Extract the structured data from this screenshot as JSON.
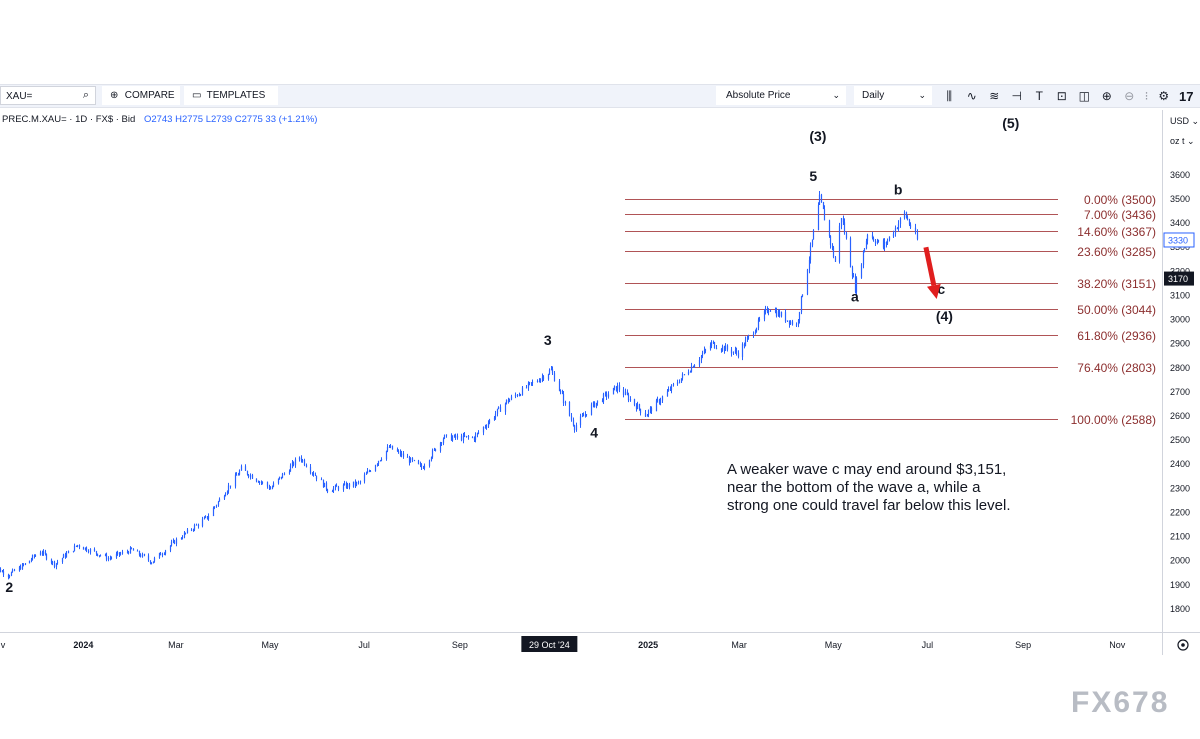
{
  "toolbar": {
    "symbol_input": "XAU=",
    "compare_label": "COMPARE",
    "templates_label": "TEMPLATES",
    "price_mode": "Absolute Price",
    "interval": "Daily",
    "tool_icons": [
      "candles-icon",
      "indicators-icon",
      "drawing-icon",
      "crosshair-icon",
      "text-icon",
      "rectangle-icon",
      "shape-icon",
      "zoom-icon",
      "zoom-out-icon",
      "settings-icon",
      "tradingview-logo"
    ]
  },
  "legend": {
    "instrument": "PREC.M.XAU= · 1D · FX$ · Bid",
    "ohlc": "O2743 H2775 L2739 C2775 33 (+1.21%)"
  },
  "axis_selectors": {
    "currency": "USD",
    "unit": "oz t"
  },
  "colors": {
    "candle": "#2962ff",
    "fib_line": "#b05456",
    "fib_text": "#8c2f2f",
    "arrow": "#e01e1e",
    "wave_text": "#131722"
  },
  "chart_data": {
    "type": "candlestick",
    "ylim": [
      1700,
      3700
    ],
    "y_ticks": [
      1800,
      1900,
      2000,
      2100,
      2200,
      2300,
      2400,
      2500,
      2600,
      2700,
      2800,
      2900,
      3000,
      3100,
      3200,
      3300,
      3400,
      3500,
      3600
    ],
    "x_range": [
      "2023-11-08",
      "2025-11-30"
    ],
    "x_tick_labels": [
      {
        "date": "2023-11-01",
        "label": "v"
      },
      {
        "date": "2024-01-01",
        "label": "2024"
      },
      {
        "date": "2024-03-01",
        "label": "Mar"
      },
      {
        "date": "2024-05-01",
        "label": "May"
      },
      {
        "date": "2024-07-01",
        "label": "Jul"
      },
      {
        "date": "2024-09-01",
        "label": "Sep"
      },
      {
        "date": "2025-01-01",
        "label": "2025"
      },
      {
        "date": "2025-03-01",
        "label": "Mar"
      },
      {
        "date": "2025-05-01",
        "label": "May"
      },
      {
        "date": "2025-07-01",
        "label": "Jul"
      },
      {
        "date": "2025-09-01",
        "label": "Sep"
      },
      {
        "date": "2025-11-01",
        "label": "Nov"
      }
    ],
    "crosshair_date": {
      "date": "2024-10-29",
      "label": "29 Oct '24"
    },
    "price_badges": [
      {
        "value": 3330,
        "label": "3330",
        "style": "blue"
      },
      {
        "value": 3170,
        "label": "3170",
        "style": "dark"
      }
    ],
    "price_path": [
      {
        "date": "2023-11-01",
        "price": 1985
      },
      {
        "date": "2023-11-13",
        "price": 1940
      },
      {
        "date": "2023-11-25",
        "price": 1990
      },
      {
        "date": "2023-12-04",
        "price": 2040
      },
      {
        "date": "2023-12-13",
        "price": 1985
      },
      {
        "date": "2023-12-28",
        "price": 2065
      },
      {
        "date": "2024-01-17",
        "price": 2010
      },
      {
        "date": "2024-02-01",
        "price": 2045
      },
      {
        "date": "2024-02-14",
        "price": 1995
      },
      {
        "date": "2024-03-01",
        "price": 2085
      },
      {
        "date": "2024-03-21",
        "price": 2180
      },
      {
        "date": "2024-04-12",
        "price": 2380
      },
      {
        "date": "2024-05-01",
        "price": 2300
      },
      {
        "date": "2024-05-20",
        "price": 2430
      },
      {
        "date": "2024-06-07",
        "price": 2295
      },
      {
        "date": "2024-06-27",
        "price": 2320
      },
      {
        "date": "2024-07-17",
        "price": 2470
      },
      {
        "date": "2024-08-07",
        "price": 2385
      },
      {
        "date": "2024-08-21",
        "price": 2510
      },
      {
        "date": "2024-09-10",
        "price": 2510
      },
      {
        "date": "2024-10-01",
        "price": 2660
      },
      {
        "date": "2024-10-30",
        "price": 2790
      },
      {
        "date": "2024-11-14",
        "price": 2555
      },
      {
        "date": "2024-11-25",
        "price": 2640
      },
      {
        "date": "2024-12-12",
        "price": 2720
      },
      {
        "date": "2024-12-30",
        "price": 2605
      },
      {
        "date": "2025-01-24",
        "price": 2770
      },
      {
        "date": "2025-02-11",
        "price": 2900
      },
      {
        "date": "2025-02-28",
        "price": 2860
      },
      {
        "date": "2025-03-20",
        "price": 3050
      },
      {
        "date": "2025-04-07",
        "price": 2975
      },
      {
        "date": "2025-04-22",
        "price": 3500
      },
      {
        "date": "2025-05-02",
        "price": 3240
      },
      {
        "date": "2025-05-06",
        "price": 3430
      },
      {
        "date": "2025-05-15",
        "price": 3130
      },
      {
        "date": "2025-05-23",
        "price": 3360
      },
      {
        "date": "2025-06-02",
        "price": 3300
      },
      {
        "date": "2025-06-16",
        "price": 3440
      },
      {
        "date": "2025-06-24",
        "price": 3330
      }
    ],
    "fibonacci": [
      {
        "value": 3500,
        "label": "0.00% (3500)"
      },
      {
        "value": 3436,
        "label": "7.00% (3436)"
      },
      {
        "value": 3367,
        "label": "14.60% (3367)"
      },
      {
        "value": 3285,
        "label": "23.60% (3285)"
      },
      {
        "value": 3151,
        "label": "38.20% (3151)"
      },
      {
        "value": 3044,
        "label": "50.00% (3044)"
      },
      {
        "value": 2936,
        "label": "61.80% (2936)"
      },
      {
        "value": 2803,
        "label": "76.40% (2803)"
      },
      {
        "value": 2588,
        "label": "100.00% (2588)"
      }
    ],
    "wave_labels": [
      {
        "text": "2",
        "date": "2023-11-14",
        "price": 1870
      },
      {
        "text": "3",
        "date": "2024-10-28",
        "price": 2895
      },
      {
        "text": "4",
        "date": "2024-11-27",
        "price": 2510
      },
      {
        "text": "(3)",
        "date": "2025-04-21",
        "price": 3740
      },
      {
        "text": "5",
        "date": "2025-04-18",
        "price": 3575
      },
      {
        "text": "(5)",
        "date": "2025-08-24",
        "price": 3795
      },
      {
        "text": "b",
        "date": "2025-06-12",
        "price": 3518
      },
      {
        "text": "a",
        "date": "2025-05-15",
        "price": 3075
      },
      {
        "text": "c",
        "date": "2025-07-10",
        "price": 3105
      },
      {
        "text": "(4)",
        "date": "2025-07-12",
        "price": 2994
      }
    ],
    "arrow": {
      "from": {
        "date": "2025-06-30",
        "price": 3300
      },
      "to": {
        "date": "2025-07-07",
        "price": 3085
      }
    }
  },
  "annotation": "A weaker wave c may end around $3,151,\nnear the bottom of the wave a, while a\nstrong one could travel far below this level.",
  "watermark": "FX678"
}
